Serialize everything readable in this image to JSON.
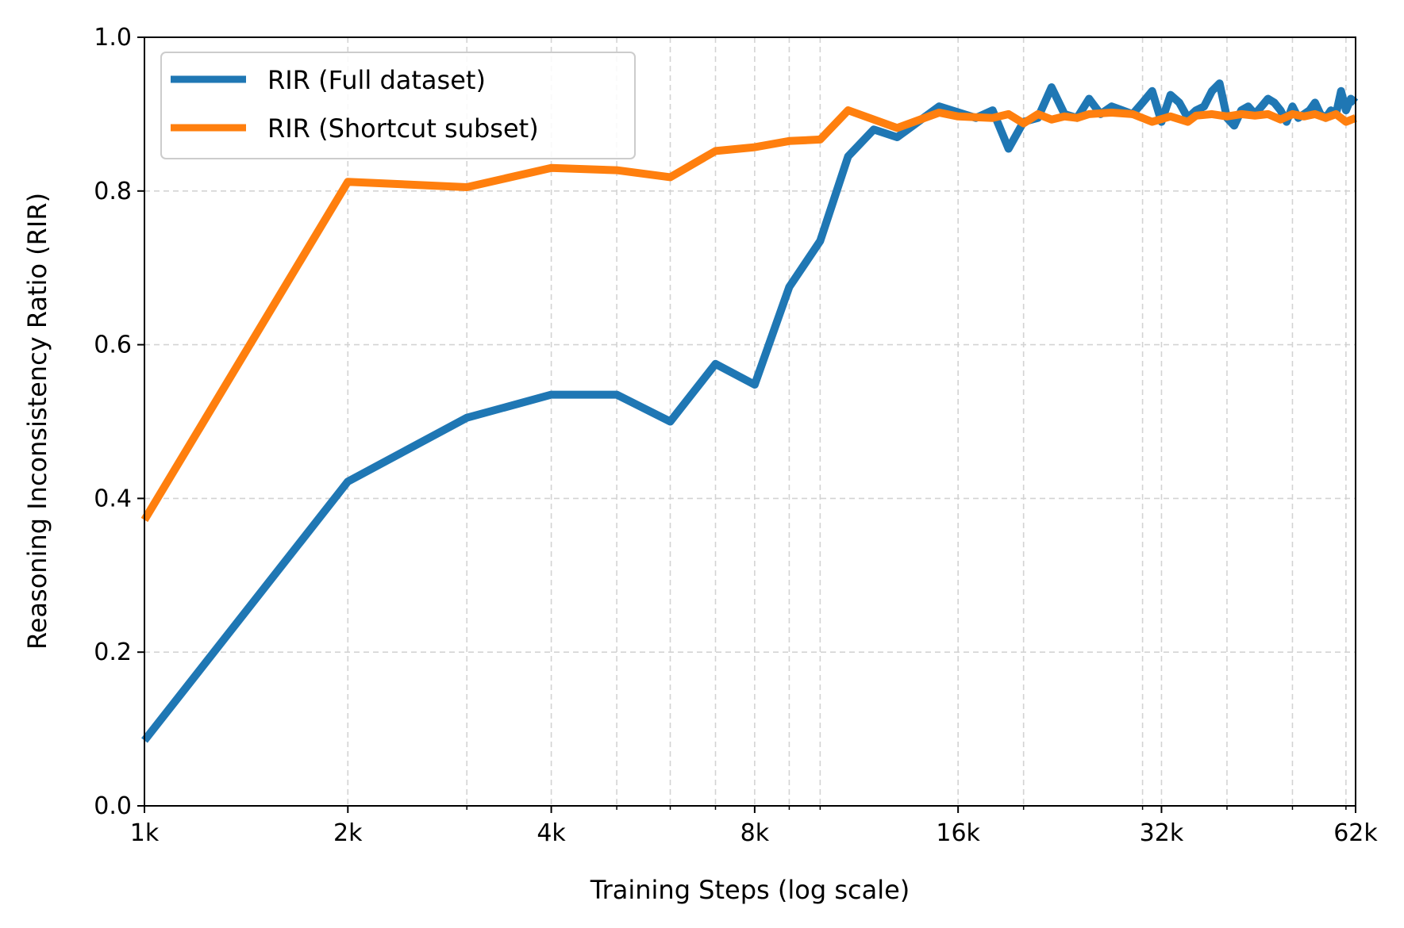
{
  "chart_data": {
    "type": "line",
    "xlabel": "Training Steps (log scale)",
    "ylabel": "Reasoning Inconsistency Ratio (RIR)",
    "xscale": "log",
    "xlim": [
      1000,
      62000
    ],
    "ylim": [
      0.0,
      1.0
    ],
    "grid": true,
    "legend_position": "top-left",
    "x_ticks": [
      {
        "value": 1000,
        "label": "1k"
      },
      {
        "value": 2000,
        "label": "2k"
      },
      {
        "value": 4000,
        "label": "4k"
      },
      {
        "value": 8000,
        "label": "8k"
      },
      {
        "value": 16000,
        "label": "16k"
      },
      {
        "value": 32000,
        "label": "32k"
      },
      {
        "value": 62000,
        "label": "62k"
      }
    ],
    "x_minor_ticks": [
      3000,
      5000,
      6000,
      7000,
      9000,
      10000,
      20000,
      30000,
      40000,
      50000,
      60000
    ],
    "y_ticks": [
      {
        "value": 0.0,
        "label": "0.0"
      },
      {
        "value": 0.2,
        "label": "0.2"
      },
      {
        "value": 0.4,
        "label": "0.4"
      },
      {
        "value": 0.6,
        "label": "0.6"
      },
      {
        "value": 0.8,
        "label": "0.8"
      },
      {
        "value": 1.0,
        "label": "1.0"
      }
    ],
    "series": [
      {
        "name": "RIR (Full dataset)",
        "color": "#1f77b4",
        "points": [
          [
            1000,
            0.085
          ],
          [
            2000,
            0.422
          ],
          [
            3000,
            0.505
          ],
          [
            4000,
            0.535
          ],
          [
            5000,
            0.535
          ],
          [
            6000,
            0.5
          ],
          [
            7000,
            0.575
          ],
          [
            8000,
            0.548
          ],
          [
            9000,
            0.675
          ],
          [
            10000,
            0.735
          ],
          [
            11000,
            0.845
          ],
          [
            12000,
            0.88
          ],
          [
            13000,
            0.87
          ],
          [
            15000,
            0.91
          ],
          [
            17000,
            0.895
          ],
          [
            18000,
            0.905
          ],
          [
            19000,
            0.855
          ],
          [
            20000,
            0.89
          ],
          [
            21000,
            0.895
          ],
          [
            22000,
            0.935
          ],
          [
            23000,
            0.9
          ],
          [
            24000,
            0.895
          ],
          [
            25000,
            0.92
          ],
          [
            26000,
            0.9
          ],
          [
            27000,
            0.91
          ],
          [
            28000,
            0.905
          ],
          [
            29000,
            0.9
          ],
          [
            30000,
            0.915
          ],
          [
            31000,
            0.93
          ],
          [
            32000,
            0.89
          ],
          [
            33000,
            0.925
          ],
          [
            34000,
            0.915
          ],
          [
            35000,
            0.895
          ],
          [
            36000,
            0.905
          ],
          [
            37000,
            0.91
          ],
          [
            38000,
            0.93
          ],
          [
            39000,
            0.94
          ],
          [
            40000,
            0.895
          ],
          [
            41000,
            0.885
          ],
          [
            42000,
            0.905
          ],
          [
            43000,
            0.91
          ],
          [
            44000,
            0.9
          ],
          [
            45000,
            0.91
          ],
          [
            46000,
            0.92
          ],
          [
            47000,
            0.915
          ],
          [
            48000,
            0.905
          ],
          [
            49000,
            0.89
          ],
          [
            50000,
            0.91
          ],
          [
            51000,
            0.895
          ],
          [
            52000,
            0.9
          ],
          [
            53000,
            0.905
          ],
          [
            54000,
            0.915
          ],
          [
            55000,
            0.9
          ],
          [
            56000,
            0.895
          ],
          [
            57000,
            0.905
          ],
          [
            58000,
            0.9
          ],
          [
            59000,
            0.93
          ],
          [
            60000,
            0.905
          ],
          [
            61000,
            0.92
          ],
          [
            62000,
            0.915
          ]
        ]
      },
      {
        "name": "RIR (Shortcut subset)",
        "color": "#ff7f0e",
        "points": [
          [
            1000,
            0.372
          ],
          [
            2000,
            0.812
          ],
          [
            3000,
            0.805
          ],
          [
            4000,
            0.83
          ],
          [
            5000,
            0.827
          ],
          [
            6000,
            0.818
          ],
          [
            7000,
            0.852
          ],
          [
            8000,
            0.857
          ],
          [
            9000,
            0.865
          ],
          [
            10000,
            0.867
          ],
          [
            11000,
            0.905
          ],
          [
            13000,
            0.882
          ],
          [
            15000,
            0.902
          ],
          [
            16000,
            0.897
          ],
          [
            18000,
            0.895
          ],
          [
            19000,
            0.9
          ],
          [
            20000,
            0.888
          ],
          [
            21000,
            0.9
          ],
          [
            22000,
            0.893
          ],
          [
            23000,
            0.897
          ],
          [
            24000,
            0.895
          ],
          [
            25000,
            0.9
          ],
          [
            27000,
            0.902
          ],
          [
            29000,
            0.9
          ],
          [
            31000,
            0.89
          ],
          [
            33000,
            0.897
          ],
          [
            35000,
            0.89
          ],
          [
            36000,
            0.898
          ],
          [
            38000,
            0.9
          ],
          [
            40000,
            0.897
          ],
          [
            42000,
            0.9
          ],
          [
            44000,
            0.898
          ],
          [
            46000,
            0.9
          ],
          [
            48000,
            0.893
          ],
          [
            50000,
            0.9
          ],
          [
            52000,
            0.897
          ],
          [
            54000,
            0.9
          ],
          [
            56000,
            0.895
          ],
          [
            58000,
            0.9
          ],
          [
            60000,
            0.89
          ],
          [
            62000,
            0.895
          ]
        ]
      }
    ]
  }
}
